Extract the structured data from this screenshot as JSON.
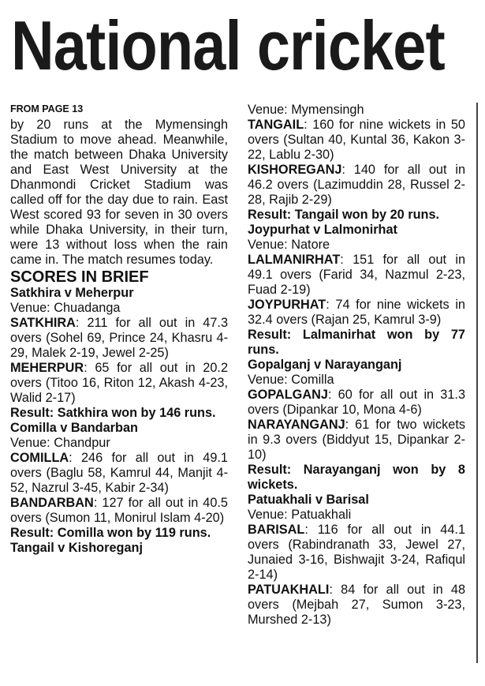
{
  "headline": "National cricket",
  "kicker": "FROM PAGE 13",
  "intro": "by 20 runs at the Mymensingh Stadium to move ahead. Meanwhile, the match between Dhaka University and East West University at the Dhanmondi Cricket Stadium was called off for the day due to rain. East West scored 93 for seven in 30 overs while Dhaka University, in their turn, were 13 without loss when the rain came in. The match resumes today.",
  "section_heading": "SCORES IN BRIEF",
  "left_blocks": [
    {
      "type": "match",
      "text": "Satkhira v Meherpur"
    },
    {
      "type": "venue",
      "text": "Venue: Chuadanga"
    },
    {
      "type": "score",
      "lead": "SATKHIRA",
      "text": ": 211 for all out in 47.3 overs (Sohel 69, Prince 24, Khasru 4-29, Malek 2-19, Jewel 2-25)"
    },
    {
      "type": "score",
      "lead": "MEHERPUR",
      "text": ": 65 for all out in 20.2 overs (Titoo 16, Riton 12, Akash 4-23, Walid 2-17)"
    },
    {
      "type": "result",
      "text": "Result: Satkhira won by 146 runs."
    },
    {
      "type": "match",
      "text": "Comilla v Bandarban"
    },
    {
      "type": "venue",
      "text": "Venue: Chandpur"
    },
    {
      "type": "score",
      "lead": "COMILLA",
      "text": ": 246 for all out in 49.1 overs (Baglu 58, Kamrul 44, Manjit 4-52, Nazrul 3-45, Kabir 2-34)"
    },
    {
      "type": "score",
      "lead": "BANDARBAN",
      "text": ": 127 for all out in 40.5 overs (Sumon 11, Monirul Islam 4-20)"
    },
    {
      "type": "result",
      "text": "Result: Comilla won by 119 runs."
    },
    {
      "type": "match",
      "text": "Tangail v Kishoreganj"
    }
  ],
  "right_blocks": [
    {
      "type": "venue",
      "text": "Venue: Mymensingh"
    },
    {
      "type": "score",
      "lead": "TANGAIL",
      "text": ": 160 for nine wickets in 50 overs (Sultan 40, Kuntal 36, Kakon 3-22, Lablu 2-30)"
    },
    {
      "type": "score",
      "lead": "KISHOREGANJ",
      "text": ": 140 for all out in 46.2 overs (Lazimuddin 28, Russel 2-28, Rajib 2-29)"
    },
    {
      "type": "result",
      "text": "Result: Tangail won by 20 runs."
    },
    {
      "type": "match",
      "text": "Joypurhat v Lalmonirhat"
    },
    {
      "type": "venue",
      "text": "Venue: Natore"
    },
    {
      "type": "score",
      "lead": "LALMANIRHAT",
      "text": ": 151 for all out in 49.1 overs (Farid 34, Nazmul 2-23, Fuad 2-19)"
    },
    {
      "type": "score",
      "lead": "JOYPURHAT",
      "text": ": 74 for nine wickets in 32.4 overs (Rajan 25, Kamrul 3-9)"
    },
    {
      "type": "result",
      "text": "Result: Lalmanirhat won by 77 runs."
    },
    {
      "type": "match",
      "text": "Gopalganj v Narayanganj"
    },
    {
      "type": "venue",
      "text": "Venue: Comilla"
    },
    {
      "type": "score",
      "lead": "GOPALGANJ",
      "text": ": 60 for all out in 31.3 overs (Dipankar 10, Mona 4-6)"
    },
    {
      "type": "score",
      "lead": "NARAYANGANJ",
      "text": ": 61 for two wickets in 9.3 overs (Biddyut 15, Dipankar 2-10)"
    },
    {
      "type": "result",
      "text": "Result: Narayanganj won by 8 wickets."
    },
    {
      "type": "match",
      "text": "Patuakhali v Barisal"
    },
    {
      "type": "venue",
      "text": "Venue: Patuakhali"
    },
    {
      "type": "score",
      "lead": "BARISAL",
      "text": ": 116 for all out in 44.1 overs (Rabindranath 33, Jewel 27, Junaied 3-16, Bishwajit 3-24, Rafiqul 2-14)"
    },
    {
      "type": "score",
      "lead": "PATUAKHALI",
      "text": ": 84 for all out in 48 overs (Mejbah 27, Sumon 3-23, Murshed 2-13)"
    }
  ]
}
